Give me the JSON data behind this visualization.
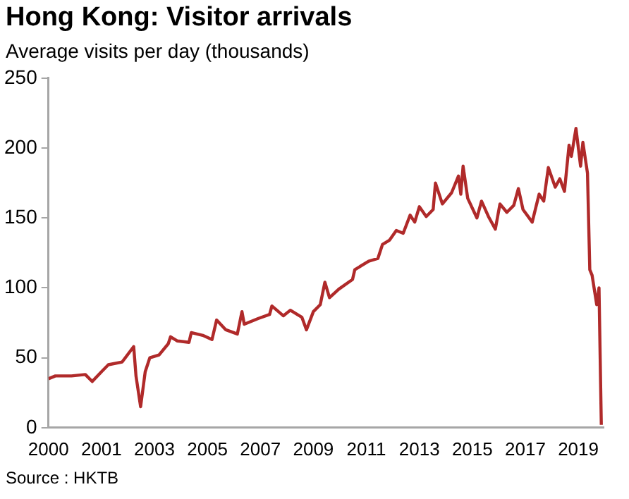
{
  "chart_data": {
    "type": "line",
    "title": "Hong Kong: Visitor arrivals",
    "ylabel": "Average visits per day (thousands)",
    "annotations": [
      "Source : HKTB"
    ],
    "x": [
      "2000-01",
      "2000-04",
      "2000-11",
      "2001-05",
      "2001-08",
      "2001-12",
      "2002-03",
      "2002-09",
      "2003-02",
      "2003-03",
      "2003-05",
      "2003-07",
      "2003-09",
      "2004-01",
      "2004-05",
      "2004-06",
      "2004-09",
      "2005-02",
      "2005-03",
      "2005-08",
      "2005-12",
      "2006-02",
      "2006-06",
      "2006-11",
      "2007-01",
      "2007-02",
      "2007-08",
      "2008-01",
      "2008-02",
      "2008-07",
      "2008-10",
      "2009-03",
      "2009-05",
      "2009-08",
      "2009-11",
      "2010-01",
      "2010-03",
      "2010-07",
      "2011-01",
      "2011-02",
      "2011-08",
      "2011-12",
      "2012-02",
      "2012-05",
      "2012-08",
      "2012-11",
      "2013-02",
      "2013-04",
      "2013-06",
      "2013-09",
      "2013-12",
      "2014-01",
      "2014-04",
      "2014-08",
      "2014-11",
      "2014-12",
      "2015-01",
      "2015-03",
      "2015-07",
      "2015-09",
      "2015-12",
      "2016-03",
      "2016-05",
      "2016-08",
      "2016-11",
      "2017-01",
      "2017-03",
      "2017-07",
      "2017-10",
      "2017-12",
      "2018-02",
      "2018-05",
      "2018-07",
      "2018-09",
      "2018-11",
      "2018-12",
      "2019-02",
      "2019-04",
      "2019-05",
      "2019-07",
      "2019-08",
      "2019-09",
      "2019-11",
      "2019-12",
      "2020-01"
    ],
    "series": [
      {
        "color": "#b02a2a",
        "values": [
          35,
          37,
          37,
          38,
          33,
          40,
          45,
          47,
          58,
          37,
          15,
          40,
          50,
          52,
          60,
          65,
          62,
          61,
          68,
          66,
          63,
          77,
          70,
          67,
          83,
          74,
          78,
          81,
          87,
          80,
          84,
          79,
          70,
          83,
          88,
          104,
          93,
          99,
          106,
          113,
          119,
          121,
          131,
          134,
          141,
          139,
          152,
          147,
          158,
          151,
          156,
          175,
          160,
          168,
          180,
          167,
          187,
          164,
          150,
          162,
          151,
          142,
          160,
          154,
          159,
          171,
          156,
          147,
          167,
          162,
          186,
          172,
          178,
          169,
          202,
          194,
          214,
          187,
          204,
          182,
          113,
          109,
          88,
          100,
          2
        ]
      }
    ],
    "xlim": [
      "2000-01",
      "2020-02"
    ],
    "xticks": [
      {
        "value": "2000-01",
        "label": "2000"
      },
      {
        "value": "2001-12",
        "label": "2001"
      },
      {
        "value": "2003-11",
        "label": "2003"
      },
      {
        "value": "2005-10",
        "label": "2005"
      },
      {
        "value": "2007-09",
        "label": "2007"
      },
      {
        "value": "2009-08",
        "label": "2009"
      },
      {
        "value": "2011-07",
        "label": "2011"
      },
      {
        "value": "2013-06",
        "label": "2013"
      },
      {
        "value": "2015-05",
        "label": "2015"
      },
      {
        "value": "2017-04",
        "label": "2017"
      },
      {
        "value": "2019-03",
        "label": "2019"
      }
    ],
    "ylim": [
      0,
      250
    ],
    "yticks": [
      0,
      50,
      100,
      150,
      200,
      250
    ],
    "marker": "none",
    "line_style": "solid"
  }
}
